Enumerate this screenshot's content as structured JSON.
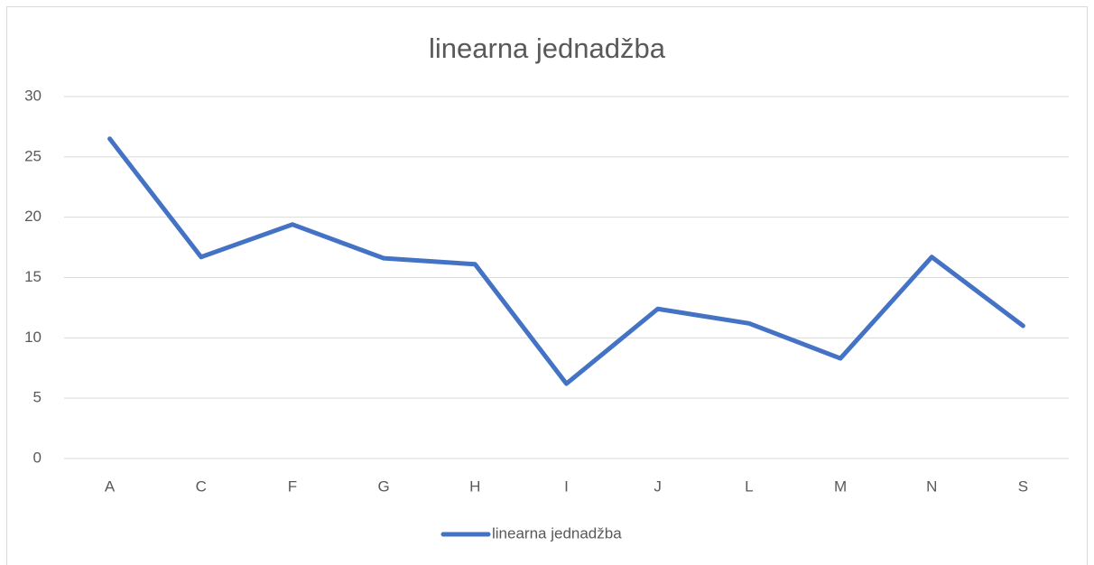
{
  "chart_data": {
    "type": "line",
    "title": "linearna jednadžba",
    "categories": [
      "A",
      "C",
      "F",
      "G",
      "H",
      "I",
      "J",
      "L",
      "M",
      "N",
      "S"
    ],
    "series": [
      {
        "name": "linearna jednadžba",
        "color": "#4472c4",
        "values": [
          26.5,
          16.7,
          19.4,
          16.6,
          16.1,
          6.2,
          12.4,
          11.2,
          8.3,
          16.7,
          11.0
        ]
      }
    ],
    "ylim": [
      0,
      30
    ],
    "yticks": [
      0,
      5,
      10,
      15,
      20,
      25,
      30
    ],
    "grid": true,
    "legend": "bottom"
  }
}
